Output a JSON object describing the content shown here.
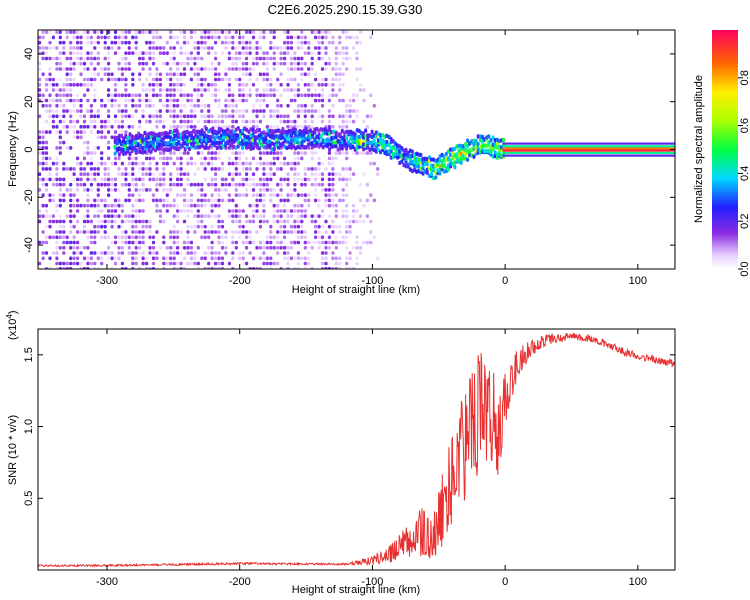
{
  "figure": {
    "title": "C2E6.2025.290.15.39.G30"
  },
  "colorbar": {
    "label": "Normalized spectral amplitude",
    "ticks": [
      "0.0",
      "0.2",
      "0.4",
      "0.6",
      "0.8"
    ],
    "tick_values": [
      0.0,
      0.2,
      0.4,
      0.6,
      0.8
    ],
    "range": [
      0,
      1
    ]
  },
  "chart_data": [
    {
      "type": "heatmap",
      "name": "spectrogram",
      "title": "C2E6.2025.290.15.39.G30",
      "xlabel": "Height of straight line (km)",
      "ylabel": "Frequency (Hz)",
      "xlim": [
        -352,
        128
      ],
      "ylim": [
        -50,
        50
      ],
      "xticks": [
        -300,
        -200,
        -100,
        0,
        100
      ],
      "xtick_labels": [
        "-300",
        "-200",
        "-100",
        "0",
        "100"
      ],
      "yticks": [
        -40,
        -20,
        0,
        20,
        40
      ],
      "ytick_labels": [
        "-40",
        "-20",
        "0",
        "20",
        "40"
      ],
      "ridge_frequency_hz": [
        [
          -290,
          2
        ],
        [
          -270,
          3
        ],
        [
          -240,
          4
        ],
        [
          -210,
          5
        ],
        [
          -180,
          4
        ],
        [
          -150,
          5
        ],
        [
          -130,
          4
        ],
        [
          -110,
          4
        ],
        [
          -95,
          3
        ],
        [
          -85,
          0
        ],
        [
          -75,
          -4
        ],
        [
          -65,
          -6
        ],
        [
          -55,
          -8
        ],
        [
          -45,
          -5
        ],
        [
          -35,
          -2
        ],
        [
          -25,
          1
        ],
        [
          -15,
          2
        ],
        [
          -5,
          0
        ],
        [
          0,
          0
        ],
        [
          50,
          0
        ],
        [
          128,
          0
        ]
      ]
    },
    {
      "type": "line",
      "name": "snr",
      "xlabel": "Height of straight line (km)",
      "ylabel": "SNR (10 * v/v)",
      "y_multiplier": "(x10",
      "y_exponent": "4",
      "y_multiplier_close": ")",
      "xlim": [
        -352,
        128
      ],
      "ylim": [
        0,
        16800
      ],
      "xticks": [
        -300,
        -200,
        -100,
        0,
        100
      ],
      "xtick_labels": [
        "-300",
        "-200",
        "-100",
        "0",
        "100"
      ],
      "yticks": [
        5000,
        10000,
        15000
      ],
      "ytick_labels": [
        "0.5",
        "1.0",
        "1.5"
      ],
      "series_color": "#e83030",
      "x": [
        -352,
        -300,
        -250,
        -200,
        -150,
        -120,
        -100,
        -90,
        -80,
        -70,
        -60,
        -55,
        -50,
        -45,
        -40,
        -35,
        -30,
        -25,
        -20,
        -15,
        -10,
        -5,
        0,
        5,
        10,
        20,
        30,
        40,
        50,
        60,
        70,
        80,
        90,
        100,
        110,
        120,
        128
      ],
      "y": [
        300,
        320,
        380,
        450,
        420,
        400,
        650,
        1000,
        1500,
        2200,
        2600,
        2200,
        3000,
        5000,
        6500,
        7500,
        8800,
        9800,
        10800,
        11500,
        11000,
        9500,
        12000,
        13200,
        14500,
        15500,
        16000,
        16200,
        16300,
        16200,
        16000,
        15600,
        15200,
        14900,
        14700,
        14500,
        14400
      ],
      "noise_amplitude": [
        60,
        60,
        70,
        70,
        60,
        60,
        300,
        500,
        900,
        1500,
        2000,
        2000,
        2500,
        3000,
        3500,
        3800,
        4000,
        4200,
        4300,
        4000,
        3500,
        3000,
        2000,
        1500,
        1000,
        600,
        400,
        300,
        250,
        250,
        250,
        250,
        250,
        250,
        250,
        250,
        250
      ]
    }
  ]
}
